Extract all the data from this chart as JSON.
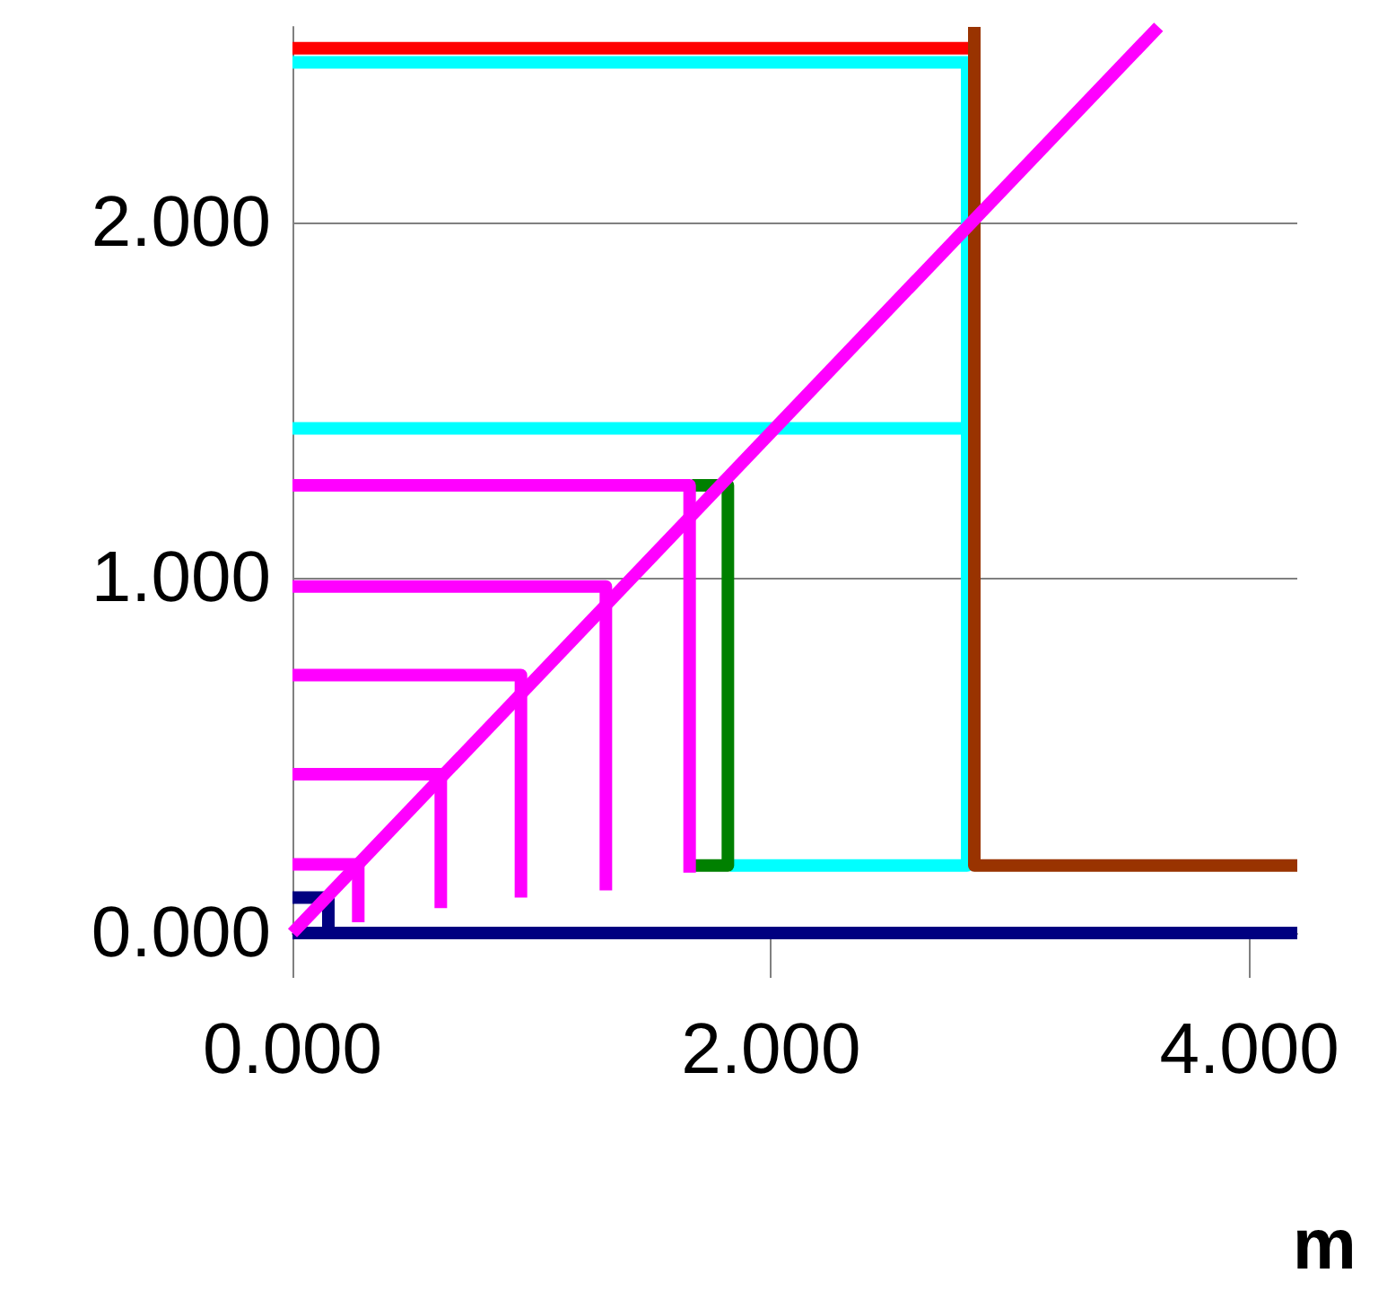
{
  "chart_data": {
    "type": "line",
    "xlabel": "m",
    "xlim": [
      0,
      4.2
    ],
    "ylim": [
      0,
      2.55
    ],
    "xticks": [
      {
        "value": 0,
        "label": "0.000"
      },
      {
        "value": 2,
        "label": "2.000"
      },
      {
        "value": 4,
        "label": "4.000"
      }
    ],
    "yticks": [
      {
        "value": 0,
        "label": "0.000"
      },
      {
        "value": 1,
        "label": "1.000"
      },
      {
        "value": 2,
        "label": "2.000"
      }
    ],
    "grid": "y",
    "marker": "none",
    "line_style": "solid",
    "series": [
      {
        "color": "#000080",
        "x": [
          0,
          4.2
        ],
        "values": [
          0,
          0
        ]
      },
      {
        "color": "#000080",
        "x": [
          0,
          0.15,
          0.15
        ],
        "values": [
          0.1,
          0.1,
          0
        ]
      },
      {
        "color": "#ff0000",
        "x": [
          0,
          2.85
        ],
        "values": [
          2.49,
          2.49
        ]
      },
      {
        "color": "#00ffff",
        "x": [
          0,
          2.82,
          2.82,
          1.83
        ],
        "values": [
          2.45,
          2.45,
          0.19,
          0.19
        ]
      },
      {
        "color": "#00ffff",
        "x": [
          0,
          2.85
        ],
        "values": [
          1.42,
          1.42
        ]
      },
      {
        "color": "#008000",
        "x": [
          1.67,
          1.82,
          1.82,
          1.67
        ],
        "values": [
          1.26,
          1.26,
          0.19,
          0.19
        ]
      },
      {
        "color": "#993300",
        "x": [
          2.85,
          2.85,
          4.2
        ],
        "values": [
          2.55,
          0.19,
          0.19
        ]
      },
      {
        "color": "#ff00ff",
        "x": [
          0,
          1.66,
          1.66
        ],
        "values": [
          1.26,
          1.26,
          0.17
        ]
      },
      {
        "color": "#ff00ff",
        "x": [
          0,
          1.31,
          1.31
        ],
        "values": [
          0.975,
          0.975,
          0.12
        ]
      },
      {
        "color": "#ff00ff",
        "x": [
          0,
          0.955,
          0.955
        ],
        "values": [
          0.726,
          0.726,
          0.1
        ]
      },
      {
        "color": "#ff00ff",
        "x": [
          0,
          0.62,
          0.62
        ],
        "values": [
          0.447,
          0.447,
          0.07
        ]
      },
      {
        "color": "#ff00ff",
        "x": [
          0,
          0.275,
          0.275
        ],
        "values": [
          0.193,
          0.193,
          0.03
        ]
      },
      {
        "color": "#ff00ff",
        "x": [
          0,
          3.62
        ],
        "values": [
          0,
          2.55
        ]
      }
    ]
  }
}
